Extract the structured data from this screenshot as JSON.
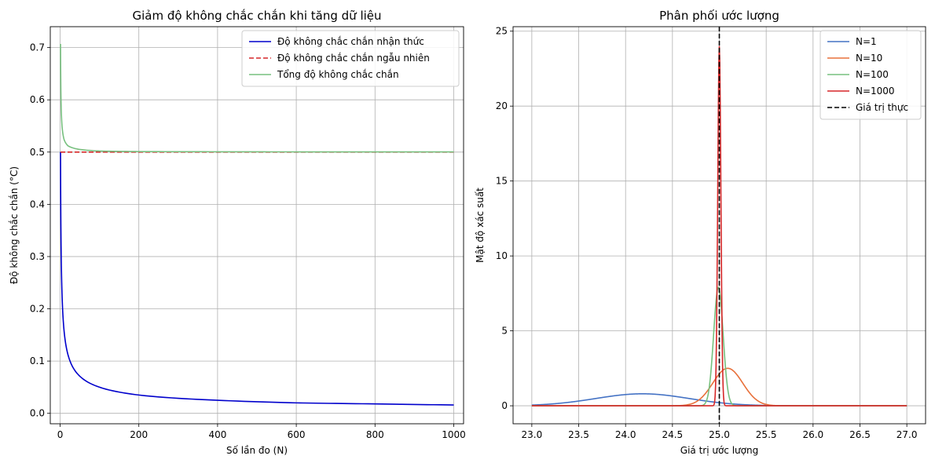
{
  "chart_data": [
    {
      "type": "line",
      "title": "Giảm độ không chắc chắn khi tăng dữ liệu",
      "xlabel": "Số lần đo (N)",
      "ylabel": "Độ không chắc chắn (°C)",
      "xlim": [
        -25,
        1025
      ],
      "ylim": [
        -0.02,
        0.74
      ],
      "xticks": [
        0,
        200,
        400,
        600,
        800,
        1000
      ],
      "yticks": [
        0.0,
        0.1,
        0.2,
        0.3,
        0.4,
        0.5,
        0.6,
        0.7
      ],
      "xtick_labels": [
        "0",
        "200",
        "400",
        "600",
        "800",
        "1000"
      ],
      "ytick_labels": [
        "0.0",
        "0.1",
        "0.2",
        "0.3",
        "0.4",
        "0.5",
        "0.6",
        "0.7"
      ],
      "grid": true,
      "legend_position": "upper right",
      "series": [
        {
          "name": "Độ không chắc chắn nhận thức",
          "color": "#0000cc",
          "style": "solid",
          "x": [
            1,
            2,
            3,
            5,
            10,
            20,
            50,
            100,
            200,
            400,
            600,
            800,
            1000
          ],
          "y": [
            0.5,
            0.354,
            0.289,
            0.224,
            0.158,
            0.112,
            0.071,
            0.05,
            0.035,
            0.025,
            0.02,
            0.018,
            0.016
          ]
        },
        {
          "name": "Độ không chắc chắn ngẫu nhiên",
          "color": "#d62728",
          "style": "dashed",
          "x": [
            1,
            1000
          ],
          "y": [
            0.5,
            0.5
          ]
        },
        {
          "name": "Tổng độ không chắc chắn",
          "color": "#77c07f",
          "style": "solid",
          "x": [
            1,
            2,
            3,
            5,
            10,
            20,
            50,
            100,
            200,
            400,
            600,
            800,
            1000
          ],
          "y": [
            0.707,
            0.612,
            0.577,
            0.548,
            0.524,
            0.512,
            0.505,
            0.502,
            0.501,
            0.5006,
            0.5004,
            0.5003,
            0.5003
          ]
        }
      ]
    },
    {
      "type": "line",
      "title": "Phân phối ước lượng",
      "xlabel": "Giá trị ước lượng",
      "ylabel": "Mật độ xác suất",
      "xlim": [
        22.8,
        27.2
      ],
      "ylim": [
        -1.2,
        25.3
      ],
      "xticks": [
        23.0,
        23.5,
        24.0,
        24.5,
        25.0,
        25.5,
        26.0,
        26.5,
        27.0
      ],
      "yticks": [
        0,
        5,
        10,
        15,
        20,
        25
      ],
      "xtick_labels": [
        "23.0",
        "23.5",
        "24.0",
        "24.5",
        "25.0",
        "25.5",
        "26.0",
        "26.5",
        "27.0"
      ],
      "ytick_labels": [
        "0",
        "5",
        "10",
        "15",
        "20",
        "25"
      ],
      "grid": true,
      "legend_position": "upper right",
      "reference_line": {
        "name": "Giá trị thực",
        "x": 25.0,
        "color": "#000000",
        "style": "dashed"
      },
      "series": [
        {
          "name": "N=1",
          "color": "#4472c4",
          "style": "solid",
          "mean": 24.18,
          "peak": 0.8,
          "x_range": [
            23.0,
            27.0
          ]
        },
        {
          "name": "N=10",
          "color": "#e8703a",
          "style": "solid",
          "mean": 25.09,
          "peak": 2.5,
          "x_range": [
            23.0,
            27.0
          ]
        },
        {
          "name": "N=100",
          "color": "#77c07f",
          "style": "solid",
          "mean": 24.99,
          "peak": 7.9,
          "x_range": [
            23.0,
            27.0
          ]
        },
        {
          "name": "N=1000",
          "color": "#d62728",
          "style": "solid",
          "mean": 25.0,
          "peak": 24.0,
          "x_range": [
            23.0,
            27.0
          ]
        }
      ]
    }
  ]
}
